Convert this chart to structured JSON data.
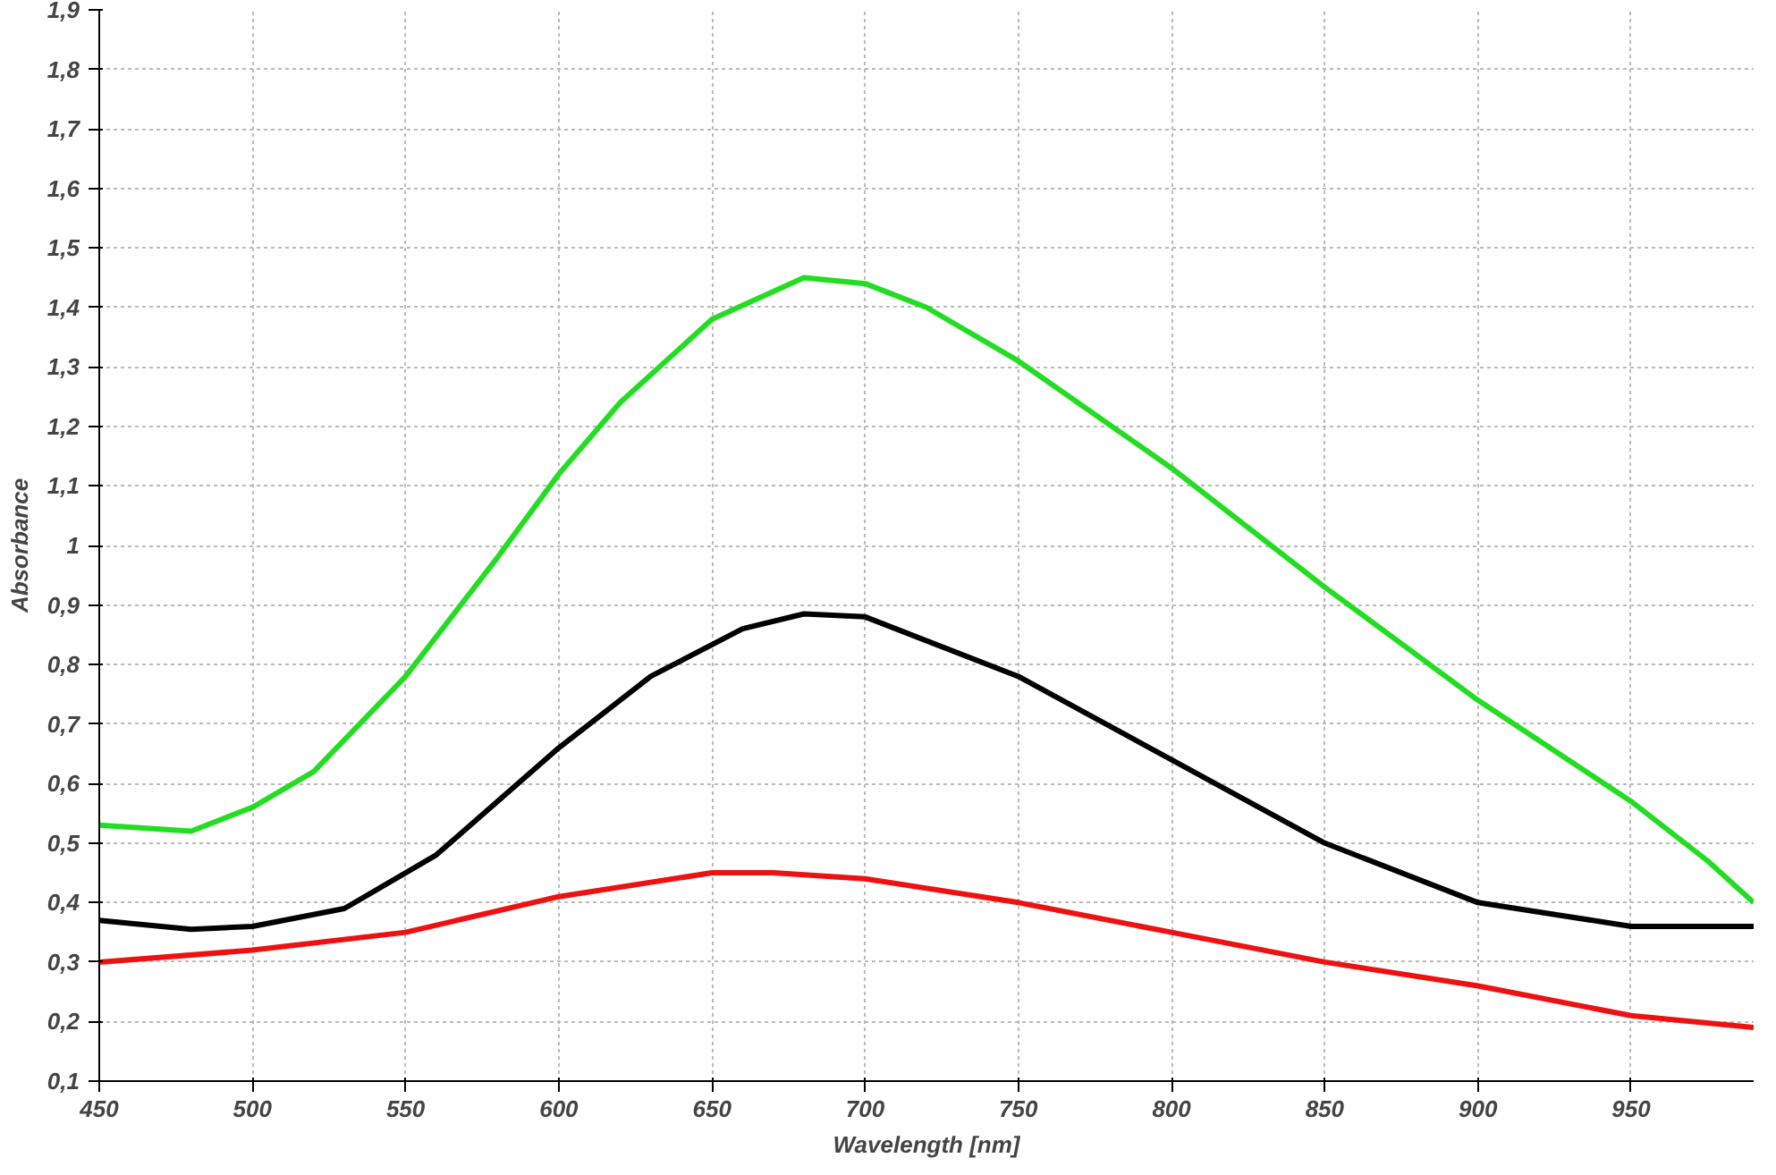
{
  "chart_data": {
    "type": "line",
    "xlabel": "Wavelength [nm]",
    "ylabel": "Absorbance",
    "xlim": [
      450,
      990
    ],
    "ylim": [
      0.1,
      1.9
    ],
    "xticks": [
      450,
      500,
      550,
      600,
      650,
      700,
      750,
      800,
      850,
      900,
      950
    ],
    "yticks": [
      {
        "value": 0.1,
        "label": "0,1"
      },
      {
        "value": 0.2,
        "label": "0,2"
      },
      {
        "value": 0.3,
        "label": "0,3"
      },
      {
        "value": 0.4,
        "label": "0,4"
      },
      {
        "value": 0.5,
        "label": "0,5"
      },
      {
        "value": 0.6,
        "label": "0,6"
      },
      {
        "value": 0.7,
        "label": "0,7"
      },
      {
        "value": 0.8,
        "label": "0,8"
      },
      {
        "value": 0.9,
        "label": "0,9"
      },
      1,
      {
        "value": 1.1,
        "label": "1,1"
      },
      {
        "value": 1.2,
        "label": "1,2"
      },
      {
        "value": 1.3,
        "label": "1,3"
      },
      {
        "value": 1.4,
        "label": "1,4"
      },
      {
        "value": 1.5,
        "label": "1,5"
      },
      {
        "value": 1.6,
        "label": "1,6"
      },
      {
        "value": 1.7,
        "label": "1,7"
      },
      {
        "value": 1.8,
        "label": "1,8"
      },
      {
        "value": 1.9,
        "label": "1,9"
      }
    ],
    "grid": true,
    "line_style": "solid",
    "series": [
      {
        "color": "#22dd22",
        "x": [
          450,
          480,
          500,
          520,
          550,
          580,
          600,
          620,
          650,
          680,
          700,
          720,
          750,
          800,
          850,
          900,
          950,
          975,
          990
        ],
        "values": [
          0.53,
          0.52,
          0.56,
          0.62,
          0.78,
          0.98,
          1.12,
          1.24,
          1.38,
          1.45,
          1.44,
          1.4,
          1.31,
          1.13,
          0.93,
          0.74,
          0.57,
          0.47,
          0.4
        ]
      },
      {
        "color": "#000000",
        "x": [
          450,
          480,
          500,
          530,
          560,
          600,
          630,
          660,
          680,
          700,
          750,
          800,
          850,
          900,
          950,
          990
        ],
        "values": [
          0.37,
          0.355,
          0.36,
          0.39,
          0.48,
          0.66,
          0.78,
          0.86,
          0.885,
          0.88,
          0.78,
          0.64,
          0.5,
          0.4,
          0.36,
          0.36
        ]
      },
      {
        "color": "#ee1111",
        "x": [
          450,
          500,
          550,
          600,
          650,
          670,
          700,
          750,
          800,
          850,
          900,
          950,
          990
        ],
        "values": [
          0.3,
          0.32,
          0.35,
          0.41,
          0.45,
          0.45,
          0.44,
          0.4,
          0.35,
          0.3,
          0.26,
          0.21,
          0.19
        ]
      }
    ]
  }
}
